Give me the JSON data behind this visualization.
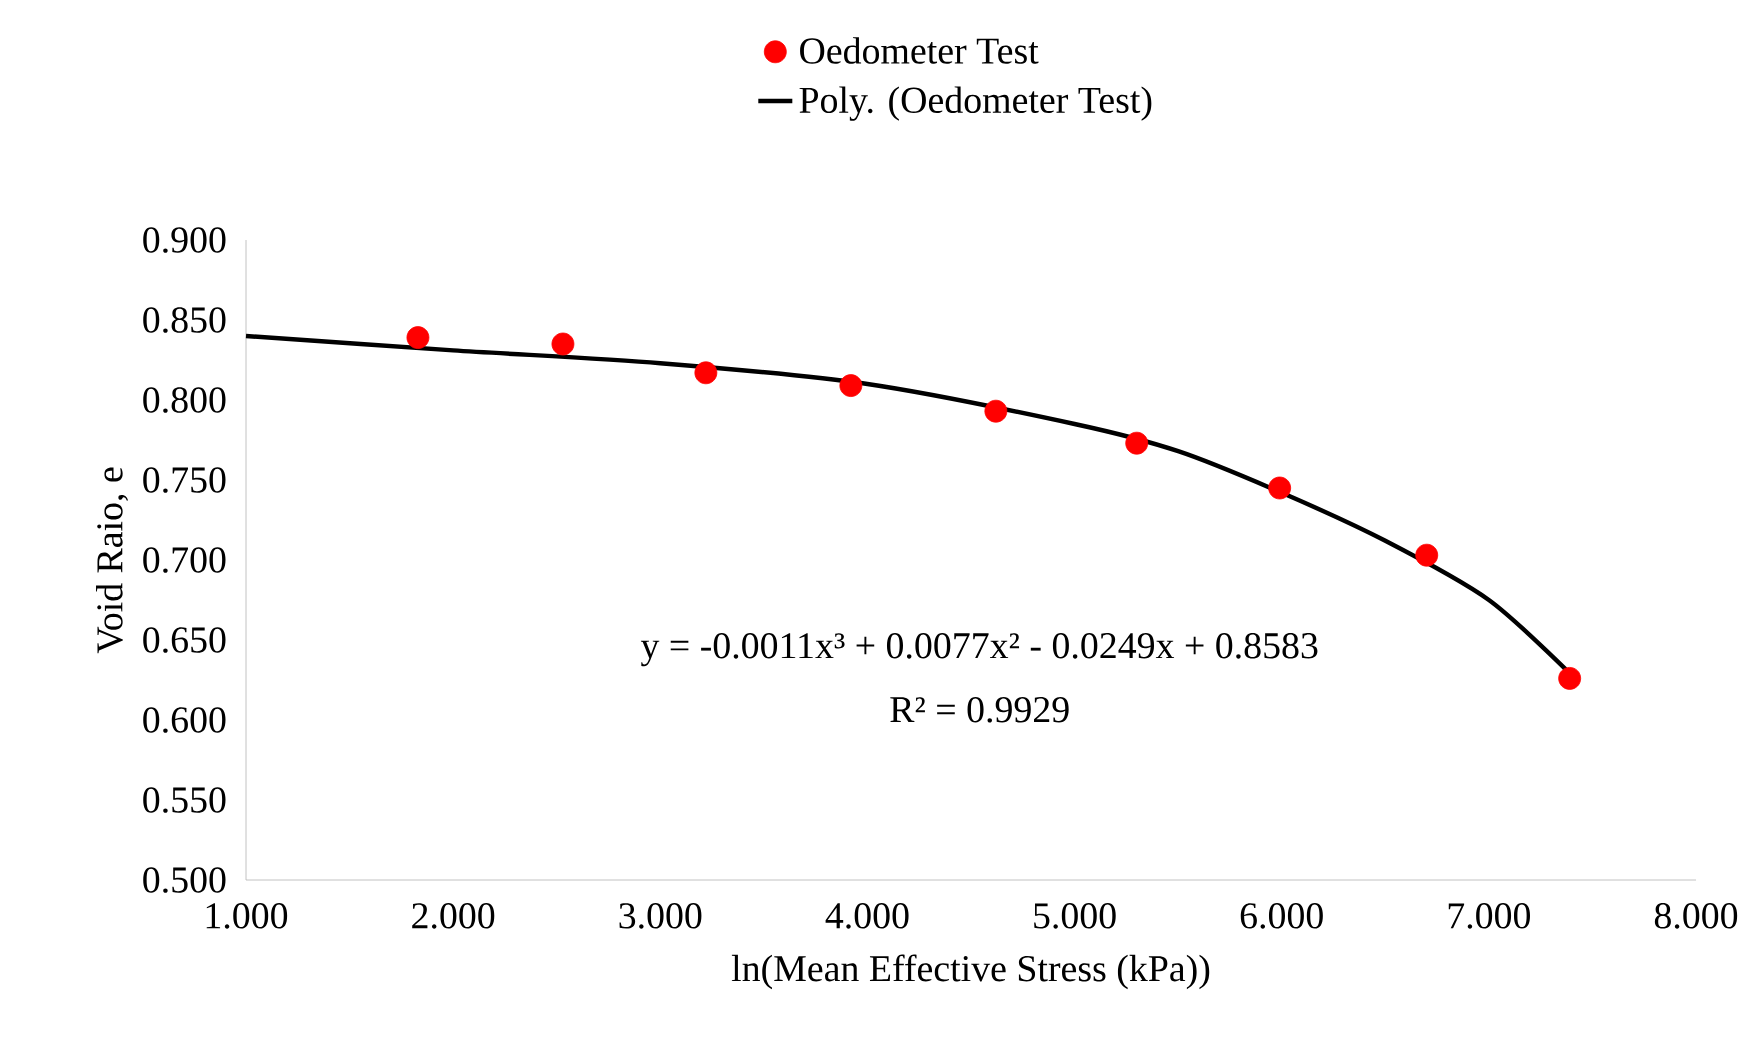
{
  "chart_data": {
    "type": "scatter",
    "xlabel": "ln(Mean Effective Stress (kPa))",
    "ylabel": "Void Raio, e",
    "xlim": [
      1,
      8
    ],
    "ylim": [
      0.5,
      0.9
    ],
    "xticks": [
      {
        "value": 1,
        "label": "1.000"
      },
      {
        "value": 2,
        "label": "2.000"
      },
      {
        "value": 3,
        "label": "3.000"
      },
      {
        "value": 4,
        "label": "4.000"
      },
      {
        "value": 5,
        "label": "5.000"
      },
      {
        "value": 6,
        "label": "6.000"
      },
      {
        "value": 7,
        "label": "7.000"
      },
      {
        "value": 8,
        "label": "8.000"
      }
    ],
    "yticks": [
      {
        "value": 0.5,
        "label": "0.500"
      },
      {
        "value": 0.55,
        "label": "0.550"
      },
      {
        "value": 0.6,
        "label": "0.600"
      },
      {
        "value": 0.65,
        "label": "0.650"
      },
      {
        "value": 0.7,
        "label": "0.700"
      },
      {
        "value": 0.75,
        "label": "0.750"
      },
      {
        "value": 0.8,
        "label": "0.800"
      },
      {
        "value": 0.85,
        "label": "0.850"
      },
      {
        "value": 0.9,
        "label": "0.900"
      }
    ],
    "legend": "top",
    "series": [
      {
        "name": "Oedometer Test",
        "marker": "circle",
        "color": "#ff0000",
        "x": [
          1.83,
          2.53,
          3.22,
          3.92,
          4.62,
          5.3,
          5.99,
          6.7,
          7.39
        ],
        "values": [
          0.839,
          0.835,
          0.817,
          0.809,
          0.793,
          0.773,
          0.745,
          0.703,
          0.626
        ]
      },
      {
        "name": "Poly. (Oedometer Test)",
        "type": "line",
        "marker": "none",
        "color": "#000000",
        "line_style": "solid",
        "x": [
          1,
          2,
          3,
          4,
          5,
          5.5,
          6,
          6.5,
          7,
          7.4
        ],
        "values": [
          0.84,
          0.831,
          0.823,
          0.81,
          0.785,
          0.768,
          0.742,
          0.712,
          0.675,
          0.628
        ]
      }
    ],
    "annotations": [
      "y = -0.0011x³ + 0.0077x² - 0.0249x + 0.8583",
      "R² = 0.9929"
    ]
  }
}
